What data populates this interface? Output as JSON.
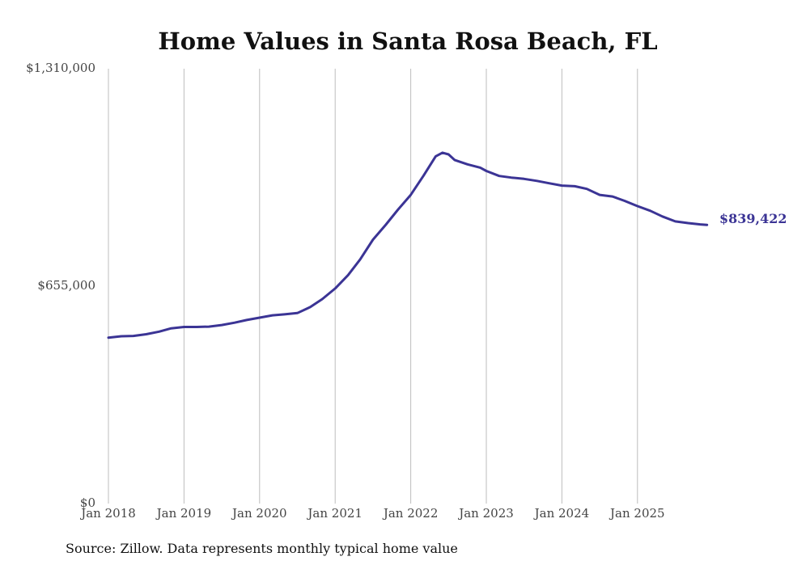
{
  "chart_data": {
    "type": "line",
    "title": "Home Values in Santa Rosa Beach, FL",
    "xlabel": "",
    "ylabel": "",
    "ylim": [
      0,
      1310000
    ],
    "y_ticks": [
      {
        "value": 0,
        "label": "$0"
      },
      {
        "value": 655000,
        "label": "$655,000"
      },
      {
        "value": 1310000,
        "label": "$1,310,000"
      }
    ],
    "x_ticks": [
      {
        "value": 2018,
        "label": "Jan 2018"
      },
      {
        "value": 2019,
        "label": "Jan 2019"
      },
      {
        "value": 2020,
        "label": "Jan 2020"
      },
      {
        "value": 2021,
        "label": "Jan 2021"
      },
      {
        "value": 2022,
        "label": "Jan 2022"
      },
      {
        "value": 2023,
        "label": "Jan 2023"
      },
      {
        "value": 2024,
        "label": "Jan 2024"
      },
      {
        "value": 2025,
        "label": "Jan 2025"
      }
    ],
    "xlim": [
      2018,
      2025.95
    ],
    "grid": "vertical",
    "series": [
      {
        "name": "Typical home value",
        "color": "#3b3495",
        "x": [
          2018.0,
          2018.17,
          2018.33,
          2018.5,
          2018.67,
          2018.83,
          2019.0,
          2019.17,
          2019.33,
          2019.5,
          2019.67,
          2019.83,
          2020.0,
          2020.17,
          2020.33,
          2020.5,
          2020.67,
          2020.83,
          2021.0,
          2021.17,
          2021.33,
          2021.5,
          2021.67,
          2021.83,
          2022.0,
          2022.17,
          2022.33,
          2022.42,
          2022.5,
          2022.58,
          2022.75,
          2022.92,
          2023.0,
          2023.17,
          2023.33,
          2023.5,
          2023.67,
          2023.83,
          2024.0,
          2024.17,
          2024.33,
          2024.5,
          2024.67,
          2024.83,
          2025.0,
          2025.17,
          2025.33,
          2025.5,
          2025.67,
          2025.83,
          2025.92
        ],
        "values": [
          500000,
          504000,
          505000,
          510000,
          518000,
          528000,
          532000,
          532000,
          533000,
          538000,
          545000,
          553000,
          560000,
          567000,
          570000,
          574000,
          592000,
          616000,
          648000,
          688000,
          735000,
          795000,
          840000,
          885000,
          930000,
          988000,
          1046000,
          1057000,
          1052000,
          1035000,
          1022000,
          1012000,
          1002000,
          987000,
          982000,
          978000,
          972000,
          965000,
          958000,
          956000,
          948000,
          930000,
          925000,
          912000,
          896000,
          882000,
          865000,
          850000,
          845000,
          841000,
          839422
        ]
      }
    ],
    "end_label": "$839,422",
    "source": "Source: Zillow. Data represents monthly typical home value"
  }
}
